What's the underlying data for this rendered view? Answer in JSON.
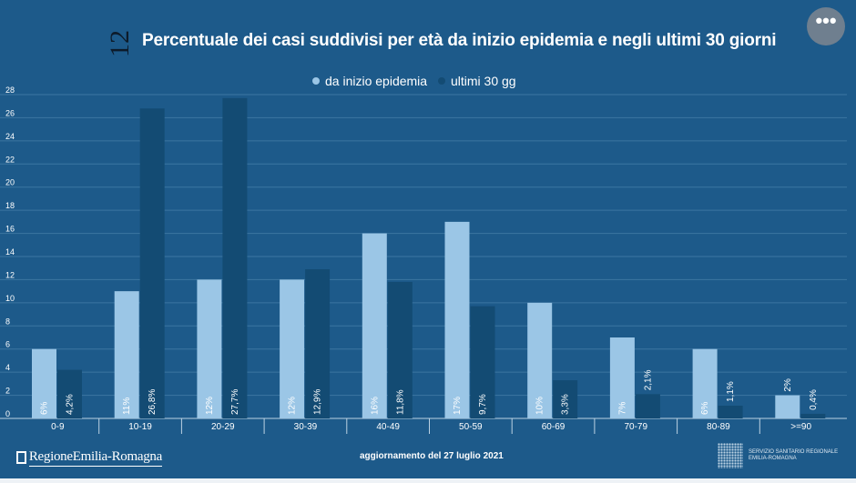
{
  "slide_number": "12",
  "more_button_label": "•••",
  "chart_data": {
    "type": "bar",
    "title": "Percentuale dei casi suddivisi per età da inizio epidemia e negli ultimi 30 giorni",
    "categories": [
      "0-9",
      "10-19",
      "20-29",
      "30-39",
      "40-49",
      "50-59",
      "60-69",
      "70-79",
      "80-89",
      ">=90"
    ],
    "series": [
      {
        "name": "da inizio epidemia",
        "color": "#9bc6e6",
        "values": [
          6,
          11,
          12,
          12,
          16,
          17,
          10,
          7,
          6,
          2
        ],
        "labels": [
          "6%",
          "11%",
          "12%",
          "12%",
          "16%",
          "17%",
          "10%",
          "7%",
          "6%",
          "2%"
        ]
      },
      {
        "name": "ultimi 30 gg",
        "color": "#134b73",
        "values": [
          4.2,
          26.8,
          27.7,
          12.9,
          11.8,
          9.7,
          3.3,
          2.1,
          1.1,
          0.4
        ],
        "labels": [
          "4,2%",
          "26,8%",
          "27,7%",
          "12,9%",
          "11,8%",
          "9,7%",
          "3,3%",
          "2,1%",
          "1,1%",
          "0,4%"
        ]
      }
    ],
    "yticks": [
      0,
      2,
      4,
      6,
      8,
      10,
      12,
      14,
      16,
      18,
      20,
      22,
      24,
      26,
      28
    ],
    "ylim": [
      0,
      28
    ],
    "grid": true,
    "legend": "top-center",
    "xlabel": "",
    "ylabel": ""
  },
  "footer": {
    "logo_text": "RegioneEmilia-Romagna",
    "update_text": "aggiornamento del 27 luglio 2021",
    "ssr_line1": "SERVIZIO SANITARIO REGIONALE",
    "ssr_line2": "EMILIA-ROMAGNA"
  }
}
